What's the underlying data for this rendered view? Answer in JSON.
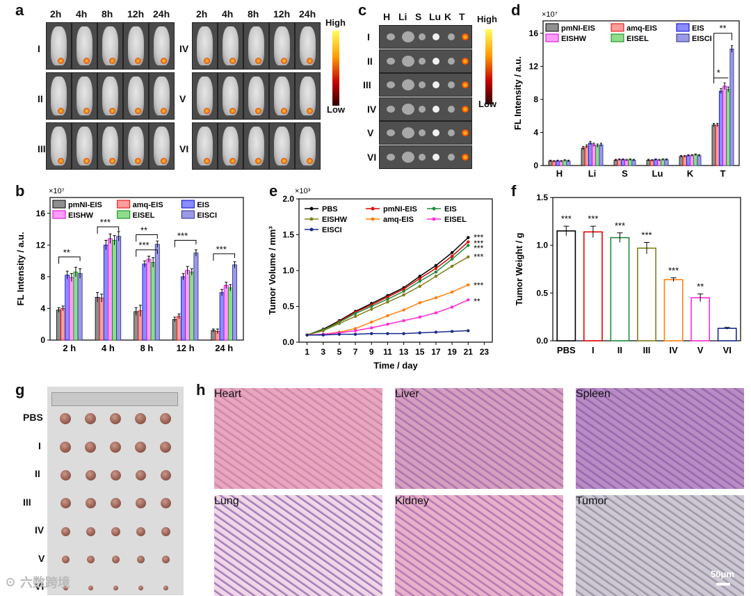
{
  "panel_labels": [
    "a",
    "b",
    "c",
    "d",
    "e",
    "f",
    "g",
    "h"
  ],
  "panel_a": {
    "timepoints": [
      "2h",
      "4h",
      "8h",
      "12h",
      "24h"
    ],
    "groups_left": [
      "I",
      "II",
      "III"
    ],
    "groups_right": [
      "IV",
      "V",
      "VI"
    ],
    "scale_high": "High",
    "scale_low": "Low"
  },
  "panel_c": {
    "organs": [
      "H",
      "Li",
      "S",
      "Lu",
      "K",
      "T"
    ],
    "groups": [
      "I",
      "II",
      "III",
      "IV",
      "V",
      "VI"
    ],
    "scale_high": "High",
    "scale_low": "Low"
  },
  "chart_data": [
    {
      "id": "b",
      "type": "bar",
      "ylabel": "FL Intensity / a.u.",
      "multiplier": "×10⁷",
      "categories": [
        "2 h",
        "4 h",
        "8 h",
        "12 h",
        "24 h"
      ],
      "ylim": [
        0,
        18
      ],
      "yticks": [
        "0",
        "4",
        "8",
        "12",
        "16"
      ],
      "series": [
        {
          "name": "pmNI-EIS",
          "values": [
            3.8,
            5.4,
            3.6,
            2.6,
            1.2
          ],
          "errors": [
            0.3,
            0.6,
            0.5,
            0.3,
            0.2
          ]
        },
        {
          "name": "amq-EIS",
          "values": [
            4.0,
            5.3,
            3.7,
            3.0,
            1.1
          ],
          "errors": [
            0.3,
            0.5,
            0.7,
            0.3,
            0.3
          ]
        },
        {
          "name": "EIS",
          "values": [
            8.2,
            12.0,
            9.6,
            8.0,
            6.0
          ],
          "errors": [
            0.5,
            0.6,
            0.4,
            0.4,
            0.4
          ]
        },
        {
          "name": "EISHW",
          "values": [
            7.9,
            12.8,
            10.2,
            8.8,
            6.9
          ],
          "errors": [
            0.5,
            0.6,
            0.4,
            0.5,
            0.4
          ]
        },
        {
          "name": "EISEL",
          "values": [
            8.6,
            12.6,
            9.8,
            8.6,
            6.6
          ],
          "errors": [
            0.6,
            0.6,
            0.6,
            0.4,
            0.4
          ]
        },
        {
          "name": "EISCI",
          "values": [
            8.4,
            13.1,
            12.1,
            11.0,
            9.5
          ],
          "errors": [
            0.6,
            0.6,
            0.4,
            0.4,
            0.4
          ]
        }
      ],
      "significance": [
        "**",
        "***",
        "**",
        "***",
        "***",
        "***"
      ]
    },
    {
      "id": "d",
      "type": "bar",
      "ylabel": "FL Intensity / a.u.",
      "multiplier": "×10⁷",
      "categories": [
        "H",
        "Li",
        "S",
        "Lu",
        "K",
        "T"
      ],
      "ylim": [
        0,
        17.5
      ],
      "yticks": [
        "0",
        "4",
        "8",
        "12",
        "16"
      ],
      "series": [
        {
          "name": "pmNI-EIS",
          "values": [
            0.55,
            2.1,
            0.65,
            0.65,
            1.1,
            4.9
          ],
          "errors": [
            0.1,
            0.2,
            0.1,
            0.1,
            0.1,
            0.2
          ]
        },
        {
          "name": "amq-EIS",
          "values": [
            0.5,
            2.3,
            0.7,
            0.6,
            1.1,
            4.9
          ],
          "errors": [
            0.1,
            0.2,
            0.1,
            0.1,
            0.1,
            0.2
          ]
        },
        {
          "name": "EIS",
          "values": [
            0.55,
            2.7,
            0.7,
            0.7,
            1.2,
            9.0
          ],
          "errors": [
            0.1,
            0.2,
            0.1,
            0.1,
            0.1,
            0.3
          ]
        },
        {
          "name": "EISHW",
          "values": [
            0.5,
            2.5,
            0.65,
            0.65,
            1.2,
            9.6
          ],
          "errors": [
            0.1,
            0.2,
            0.1,
            0.1,
            0.1,
            0.4
          ]
        },
        {
          "name": "EISEL",
          "values": [
            0.6,
            2.4,
            0.7,
            0.7,
            1.3,
            9.2
          ],
          "errors": [
            0.1,
            0.2,
            0.1,
            0.1,
            0.1,
            0.3
          ]
        },
        {
          "name": "EISCI",
          "values": [
            0.55,
            2.5,
            0.65,
            0.7,
            1.2,
            14.1
          ],
          "errors": [
            0.1,
            0.2,
            0.1,
            0.1,
            0.1,
            0.4
          ]
        }
      ],
      "significance": [
        "*",
        "**"
      ]
    },
    {
      "id": "e",
      "type": "line",
      "xlabel": "Time / day",
      "ylabel": "Tumor  Volume / mm³",
      "multiplier": "×10³",
      "x": [
        1,
        3,
        5,
        7,
        9,
        11,
        13,
        15,
        17,
        19,
        21
      ],
      "xticks": [
        "1",
        "3",
        "5",
        "7",
        "9",
        "11",
        "13",
        "15",
        "17",
        "19",
        "21",
        "23"
      ],
      "xlim": [
        0,
        24
      ],
      "ylim": [
        0,
        2.0
      ],
      "yticks": [
        "0.0",
        "0.5",
        "1.0",
        "1.5",
        "2.0"
      ],
      "series": [
        {
          "name": "PBS",
          "color": "#000000",
          "values": [
            0.1,
            0.18,
            0.3,
            0.43,
            0.54,
            0.65,
            0.76,
            0.92,
            1.07,
            1.25,
            1.46
          ]
        },
        {
          "name": "pmNI-EIS",
          "color": "#e00000",
          "values": [
            0.1,
            0.17,
            0.29,
            0.42,
            0.52,
            0.63,
            0.74,
            0.89,
            1.03,
            1.2,
            1.4
          ]
        },
        {
          "name": "EIS",
          "color": "#1f8a3b",
          "values": [
            0.1,
            0.17,
            0.28,
            0.4,
            0.5,
            0.6,
            0.71,
            0.85,
            0.98,
            1.16,
            1.35
          ]
        },
        {
          "name": "EISHW",
          "color": "#7f7f1a",
          "values": [
            0.1,
            0.16,
            0.26,
            0.36,
            0.46,
            0.56,
            0.66,
            0.78,
            0.92,
            1.06,
            1.19
          ]
        },
        {
          "name": "amq-EIS",
          "color": "#ff7f0e",
          "values": [
            0.1,
            0.11,
            0.14,
            0.19,
            0.28,
            0.37,
            0.45,
            0.55,
            0.62,
            0.7,
            0.8
          ]
        },
        {
          "name": "EISEL",
          "color": "#ff2bd6",
          "values": [
            0.1,
            0.11,
            0.13,
            0.16,
            0.2,
            0.25,
            0.3,
            0.35,
            0.41,
            0.49,
            0.59
          ]
        },
        {
          "name": "EISCI",
          "color": "#1a2a8a",
          "values": [
            0.1,
            0.1,
            0.11,
            0.11,
            0.12,
            0.12,
            0.12,
            0.13,
            0.14,
            0.15,
            0.16
          ]
        }
      ],
      "significance": [
        "***",
        "***",
        "***",
        "***",
        "***",
        "**"
      ]
    },
    {
      "id": "f",
      "type": "bar",
      "ylabel": "Tumor Weight / g",
      "categories": [
        "PBS",
        "I",
        "II",
        "III",
        "IV",
        "V",
        "VI"
      ],
      "ylim": [
        0,
        1.5
      ],
      "yticks": [
        "0.0",
        "0.5",
        "1.0",
        "1.5"
      ],
      "values": [
        1.15,
        1.14,
        1.08,
        0.97,
        0.64,
        0.45,
        0.13
      ],
      "errors": [
        0.05,
        0.06,
        0.05,
        0.06,
        0.02,
        0.04,
        0.01
      ],
      "colors": [
        "#000000",
        "#e00000",
        "#1f8a3b",
        "#7f7f1a",
        "#ff7f0e",
        "#ff2bd6",
        "#1a2a8a"
      ],
      "significance": [
        "***",
        "***",
        "***",
        "***",
        "***",
        "**",
        ""
      ]
    }
  ],
  "panel_g": {
    "rows": [
      "PBS",
      "I",
      "II",
      "III",
      "IV",
      "V",
      "VI"
    ]
  },
  "panel_h": {
    "tissues": [
      "Heart",
      "Liver",
      "Spleen",
      "Lung",
      "Kidney",
      "Tumor"
    ],
    "scale_bar": "50μm"
  },
  "watermark": "☉ 六数跨境"
}
